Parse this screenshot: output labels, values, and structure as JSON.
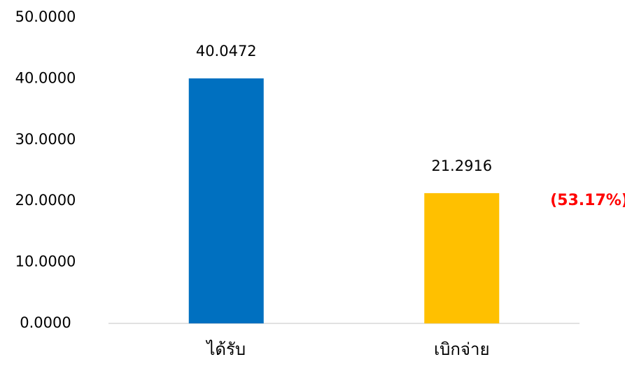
{
  "chart_data": {
    "type": "bar",
    "categories": [
      "ได้รับ",
      "เบิกจ่าย"
    ],
    "values": [
      40.0472,
      21.2916
    ],
    "colors": [
      "#0070c0",
      "#ffc000"
    ],
    "ylim": [
      0,
      50
    ],
    "yticks": [
      {
        "value": 0,
        "label": "0.0000"
      },
      {
        "value": 10,
        "label": "10.0000"
      },
      {
        "value": 20,
        "label": "20.0000"
      },
      {
        "value": 30,
        "label": "30.0000"
      },
      {
        "value": 40,
        "label": "40.0000"
      },
      {
        "value": 50,
        "label": "50.0000"
      }
    ],
    "grid": false,
    "annotations": [
      "(53.17%)"
    ]
  }
}
